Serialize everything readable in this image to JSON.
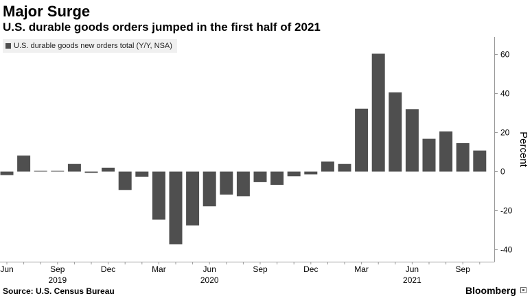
{
  "header": {
    "title": "Major Surge",
    "subtitle": "U.S. durable goods orders jumped in the first half of 2021"
  },
  "footer": {
    "source": "Source: U.S. Census Bureau",
    "brand": "Bloomberg"
  },
  "colors": {
    "bar": "#4f4f4f",
    "legend_background": "#f0f0f0",
    "axis": "#999999",
    "text": "#000000"
  },
  "chart_data": {
    "type": "bar",
    "legend": "U.S. durable goods new orders total (Y/Y, NSA)",
    "legend_position": "top-left",
    "ylabel": "Percent",
    "y_axis_side": "right",
    "ylim": [
      -45,
      70
    ],
    "yticks": [
      -40,
      -20,
      0,
      20,
      40,
      60
    ],
    "grid": false,
    "categories": [
      "2019-06",
      "2019-07",
      "2019-08",
      "2019-09",
      "2019-10",
      "2019-11",
      "2019-12",
      "2020-01",
      "2020-02",
      "2020-03",
      "2020-04",
      "2020-05",
      "2020-06",
      "2020-07",
      "2020-08",
      "2020-09",
      "2020-10",
      "2020-11",
      "2020-12",
      "2021-01",
      "2021-02",
      "2021-03",
      "2021-04",
      "2021-05",
      "2021-06",
      "2021-07",
      "2021-08",
      "2021-09",
      "2021-10"
    ],
    "values": [
      -1.8,
      8.2,
      0.4,
      0.4,
      4.0,
      -0.6,
      2.0,
      -9.4,
      -2.6,
      -24.6,
      -37.2,
      -27.6,
      -17.8,
      -11.8,
      -12.6,
      -5.4,
      -6.8,
      -2.4,
      -1.4,
      5.2,
      4.0,
      32.2,
      60.4,
      40.6,
      32.0,
      16.8,
      20.6,
      14.6,
      10.8
    ],
    "x_tick_labels": [
      {
        "index": 0,
        "label": "Jun"
      },
      {
        "index": 3,
        "label": "Sep"
      },
      {
        "index": 6,
        "label": "Dec"
      },
      {
        "index": 9,
        "label": "Mar"
      },
      {
        "index": 12,
        "label": "Jun"
      },
      {
        "index": 15,
        "label": "Sep"
      },
      {
        "index": 18,
        "label": "Dec"
      },
      {
        "index": 21,
        "label": "Mar"
      },
      {
        "index": 24,
        "label": "Jun"
      },
      {
        "index": 27,
        "label": "Sep"
      }
    ],
    "year_labels": [
      {
        "index": 3,
        "label": "2019"
      },
      {
        "index": 12,
        "label": "2020"
      },
      {
        "index": 24,
        "label": "2021"
      }
    ]
  }
}
